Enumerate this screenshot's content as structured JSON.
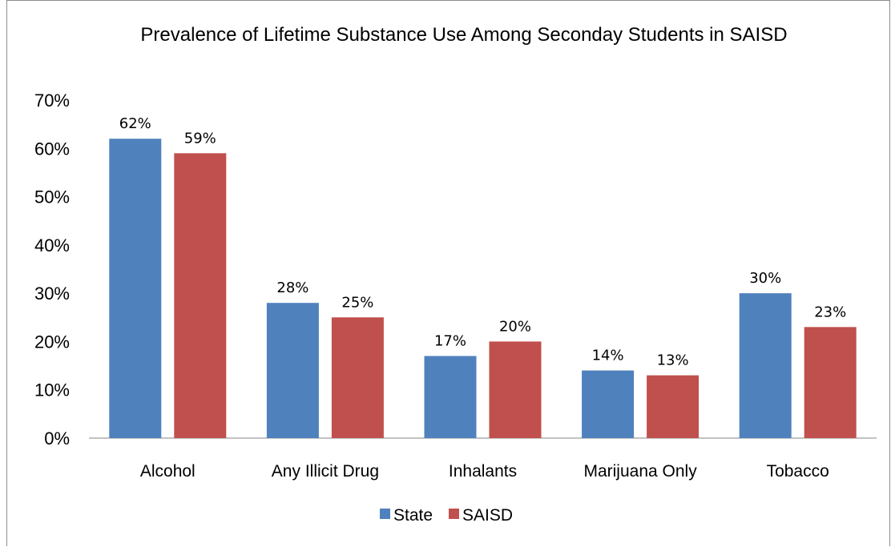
{
  "chart_data": {
    "type": "bar",
    "title": "Prevalence of Lifetime Substance Use Among Seconday Students in SAISD",
    "categories": [
      "Alcohol",
      "Any Illicit Drug",
      "Inhalants",
      "Marijuana Only",
      "Tobacco"
    ],
    "series": [
      {
        "name": "State",
        "values": [
          62,
          28,
          17,
          14,
          30
        ],
        "color": "#4f81bd"
      },
      {
        "name": "SAISD",
        "values": [
          59,
          25,
          20,
          13,
          23
        ],
        "color": "#c0504d"
      }
    ],
    "data_labels": [
      [
        "62%",
        "28%",
        "17%",
        "14%",
        "30%"
      ],
      [
        "59%",
        "25%",
        "20%",
        "13%",
        "23%"
      ]
    ],
    "yticks": [
      "0%",
      "10%",
      "20%",
      "30%",
      "40%",
      "50%",
      "60%",
      "70%"
    ],
    "ylim": [
      0,
      70
    ],
    "grid": false,
    "legend_position": "bottom"
  }
}
